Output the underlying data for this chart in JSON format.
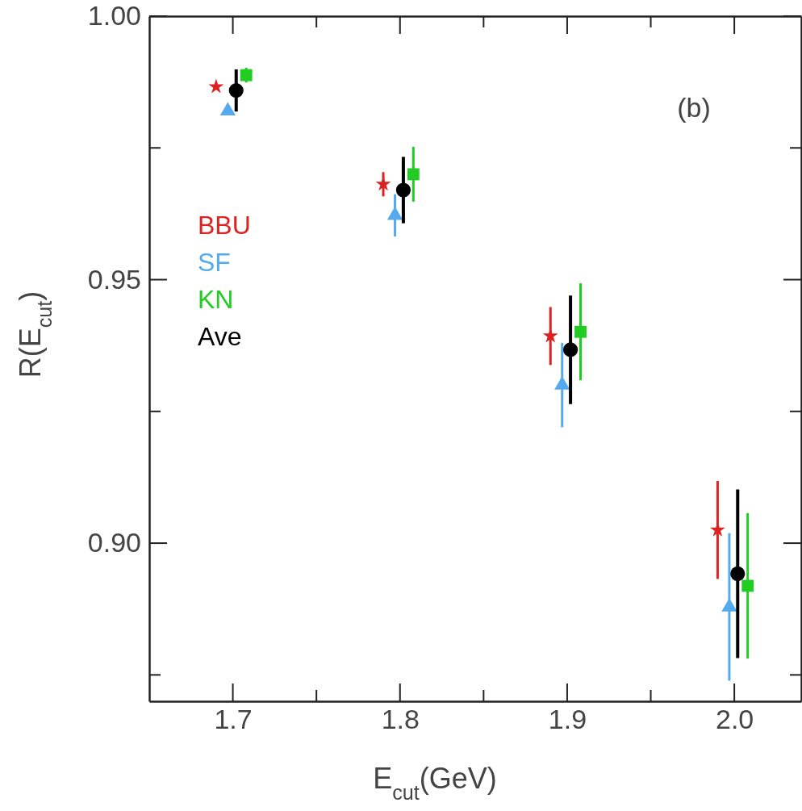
{
  "chart_data": {
    "type": "scatter",
    "xlabel": "E$_{cut}$(GeV)",
    "ylabel": "R(E$_{cut}$)",
    "xlim": [
      1.65,
      2.04
    ],
    "ylim": [
      0.87,
      1.0
    ],
    "xticks": [
      {
        "value": 1.7,
        "label": "1.7"
      },
      {
        "value": 1.75,
        "label": null
      },
      {
        "value": 1.8,
        "label": "1.8"
      },
      {
        "value": 1.85,
        "label": null
      },
      {
        "value": 1.9,
        "label": "1.9"
      },
      {
        "value": 1.95,
        "label": null
      },
      {
        "value": 2.0,
        "label": "2.0"
      }
    ],
    "yticks": [
      {
        "value": 0.875,
        "label": null
      },
      {
        "value": 0.9,
        "label": "0.90"
      },
      {
        "value": 0.925,
        "label": null
      },
      {
        "value": 0.95,
        "label": "0.95"
      },
      {
        "value": 0.975,
        "label": null
      },
      {
        "value": 1.0,
        "label": "1.00"
      }
    ],
    "grid": false,
    "legend": "left",
    "annotations": [
      "(b)"
    ],
    "series": [
      {
        "name": "BBU",
        "color": "#dd2222",
        "marker": "star",
        "x": [
          1.69,
          1.79,
          1.89,
          1.99
        ],
        "values": [
          0.9866,
          0.9681,
          0.9393,
          0.9025
        ],
        "errors": [
          null,
          0.0023,
          0.0055,
          0.0093
        ]
      },
      {
        "name": "SF",
        "color": "#55aaee",
        "marker": "triangle",
        "x": [
          1.697,
          1.797,
          1.897,
          1.997
        ],
        "values": [
          0.982,
          0.9622,
          0.93,
          0.8879
        ],
        "errors": [
          null,
          0.004,
          0.008,
          0.014
        ]
      },
      {
        "name": "KN",
        "color": "#22cc22",
        "marker": "square",
        "x": [
          1.708,
          1.808,
          1.908,
          2.008
        ],
        "values": [
          0.9888,
          0.97,
          0.9401,
          0.8919
        ],
        "errors": [
          0.0014,
          0.0052,
          0.0092,
          0.0138
        ]
      },
      {
        "name": "Ave",
        "color": "#000000",
        "marker": "circle",
        "x": [
          1.702,
          1.802,
          1.902,
          2.002
        ],
        "values": [
          0.9859,
          0.967,
          0.9367,
          0.8942
        ],
        "errors": [
          0.004,
          0.0063,
          0.0103,
          0.016
        ]
      }
    ]
  }
}
